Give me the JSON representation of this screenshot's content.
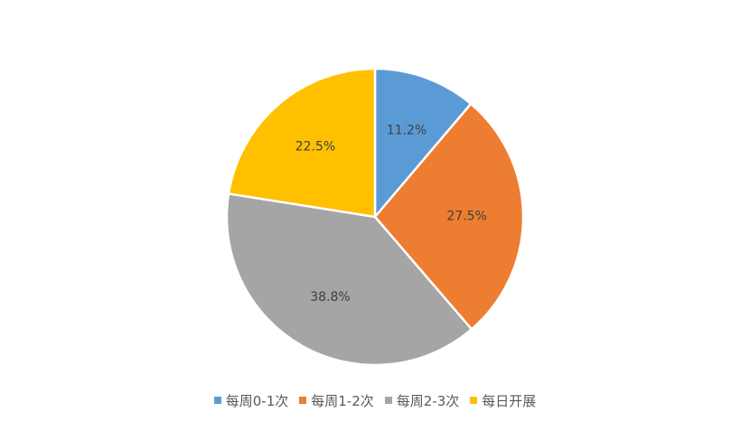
{
  "chart_data": {
    "type": "pie",
    "categories": [
      "每周0-1次",
      "每周1-2次",
      "每周2-3次",
      "每日开展"
    ],
    "values": [
      11.2,
      27.5,
      38.8,
      22.5
    ],
    "labels": [
      "11.2%",
      "27.5%",
      "38.8%",
      "22.5%"
    ],
    "colors": [
      "#5b9bd5",
      "#ed7d31",
      "#a5a5a5",
      "#ffc000"
    ],
    "legend_position": "bottom",
    "start": "12 o'clock, clockwise"
  },
  "legend": {
    "items": [
      {
        "label": "每周0-1次",
        "color": "#5b9bd5"
      },
      {
        "label": "每周1-2次",
        "color": "#ed7d31"
      },
      {
        "label": "每周2-3次",
        "color": "#a5a5a5"
      },
      {
        "label": "每日开展",
        "color": "#ffc000"
      }
    ]
  }
}
